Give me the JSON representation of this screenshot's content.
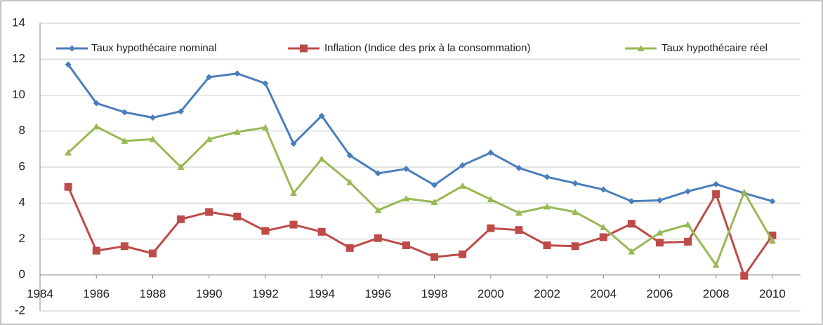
{
  "chart_data": {
    "type": "line",
    "x": [
      1985,
      1986,
      1987,
      1988,
      1989,
      1990,
      1991,
      1992,
      1993,
      1994,
      1995,
      1996,
      1997,
      1998,
      1999,
      2000,
      2001,
      2002,
      2003,
      2004,
      2005,
      2006,
      2007,
      2008,
      2009,
      2010
    ],
    "series": [
      {
        "name": "Taux hypothécaire nominal",
        "color": "#4a7ebb",
        "marker": "diamond",
        "values": [
          11.7,
          9.55,
          9.05,
          8.75,
          9.1,
          11.0,
          11.2,
          10.65,
          7.3,
          8.85,
          6.65,
          5.65,
          5.9,
          5.0,
          6.1,
          6.8,
          5.95,
          5.45,
          5.1,
          4.75,
          4.1,
          4.15,
          4.65,
          5.05,
          4.55,
          4.1
        ]
      },
      {
        "name": "Inflation (Indice des prix à la consommation)",
        "color": "#be4b48",
        "marker": "square",
        "values": [
          4.9,
          1.35,
          1.6,
          1.2,
          3.1,
          3.5,
          3.25,
          2.45,
          2.8,
          2.4,
          1.5,
          2.05,
          1.65,
          1.0,
          1.15,
          2.6,
          2.5,
          1.65,
          1.6,
          2.1,
          2.85,
          1.8,
          1.85,
          4.5,
          -0.05,
          2.2
        ]
      },
      {
        "name": "Taux hypothécaire réel",
        "color": "#98b954",
        "marker": "triangle",
        "values": [
          6.8,
          8.25,
          7.45,
          7.55,
          6.0,
          7.55,
          7.95,
          8.2,
          4.55,
          6.45,
          5.15,
          3.6,
          4.25,
          4.05,
          4.95,
          4.2,
          3.45,
          3.8,
          3.5,
          2.65,
          1.3,
          2.35,
          2.8,
          0.55,
          4.6,
          1.9
        ]
      }
    ],
    "xlim": [
      1984,
      2011
    ],
    "xticks": [
      1984,
      1986,
      1988,
      1990,
      1992,
      1994,
      1996,
      1998,
      2000,
      2002,
      2004,
      2006,
      2008,
      2010
    ],
    "ylim": [
      -2,
      14
    ],
    "yticks": [
      -2,
      0,
      2,
      4,
      6,
      8,
      10,
      12,
      14
    ],
    "grid": true,
    "legend": "top"
  }
}
